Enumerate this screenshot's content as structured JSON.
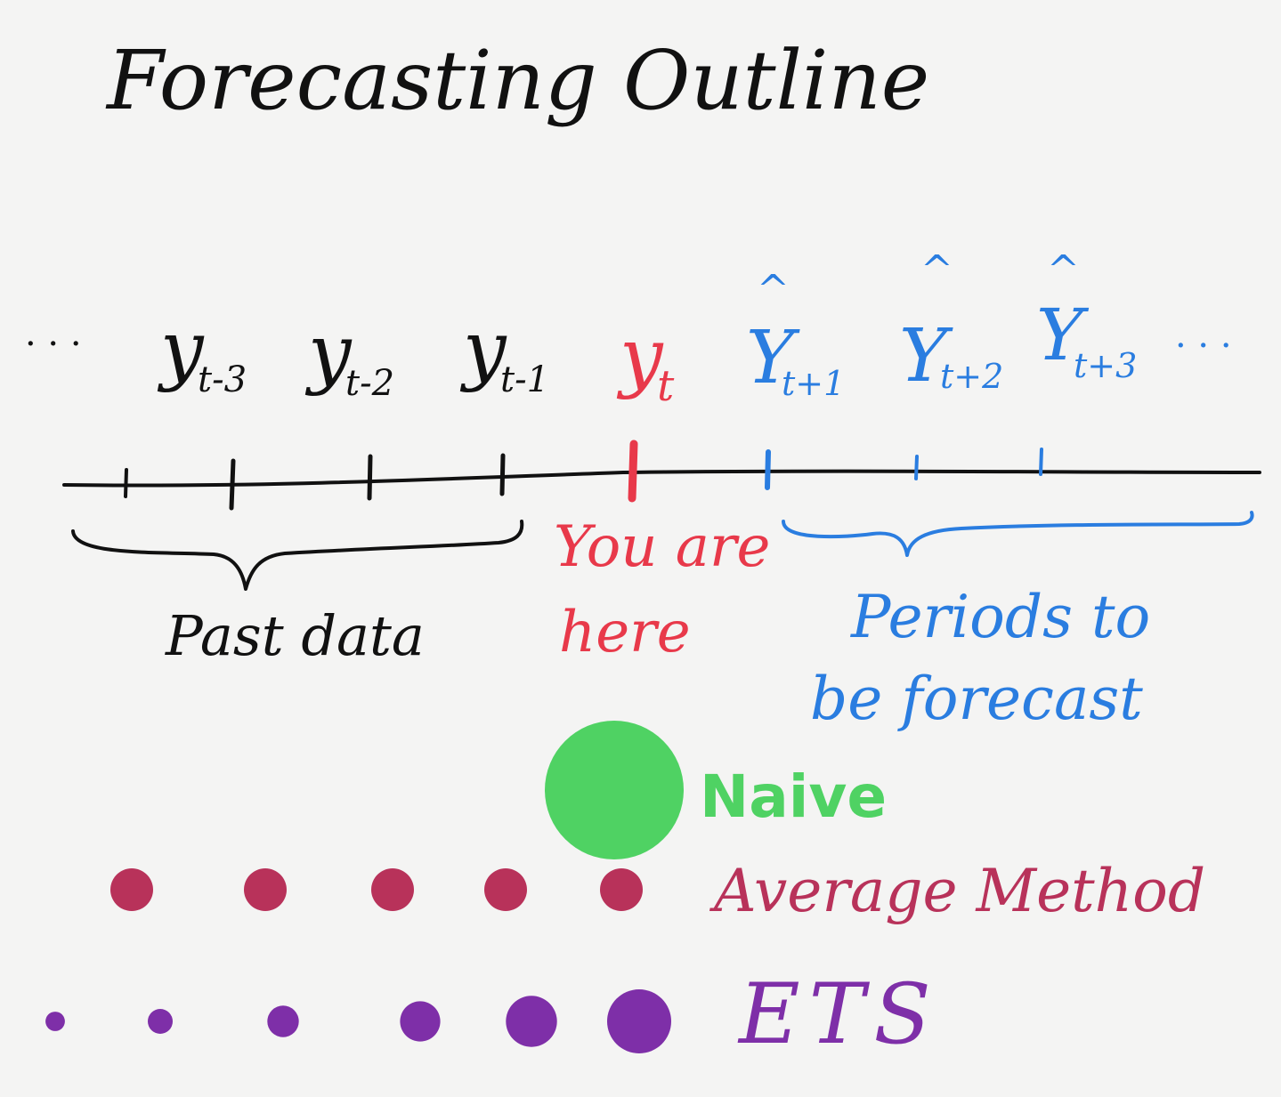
{
  "title": "Forecasting Outline",
  "ellipsis": "· · ·",
  "colors": {
    "ink": "#111111",
    "current": "#e8394a",
    "forecast": "#2a7de0",
    "naive": "#4fd263",
    "average": "#b8325a",
    "ets": "#7e2fa8",
    "paper": "#f4f4f3"
  },
  "past": [
    {
      "base": "y",
      "sub": "t-3"
    },
    {
      "base": "y",
      "sub": "t-2"
    },
    {
      "base": "y",
      "sub": "t-1"
    }
  ],
  "current": {
    "base": "y",
    "sub": "t"
  },
  "future": [
    {
      "base": "Y",
      "hat": "^",
      "sub": "t+1"
    },
    {
      "base": "Y",
      "hat": "^",
      "sub": "t+2"
    },
    {
      "base": "Y",
      "hat": "^",
      "sub": "t+3"
    }
  ],
  "labels": {
    "past_data": "Past data",
    "you_are_here_line1": "You are",
    "you_are_here_line2": "here",
    "periods_line1": "Periods to",
    "periods_line2": "be forecast"
  },
  "methods": [
    {
      "name": "Naive",
      "color_key": "naive",
      "weights": [
        1
      ]
    },
    {
      "name": "Average Method",
      "color_key": "average",
      "weights": [
        1,
        1,
        1,
        1,
        1
      ]
    },
    {
      "name": "ETS",
      "color_key": "ets",
      "weights": [
        0.06,
        0.1,
        0.16,
        0.26,
        0.42,
        0.66
      ]
    }
  ]
}
